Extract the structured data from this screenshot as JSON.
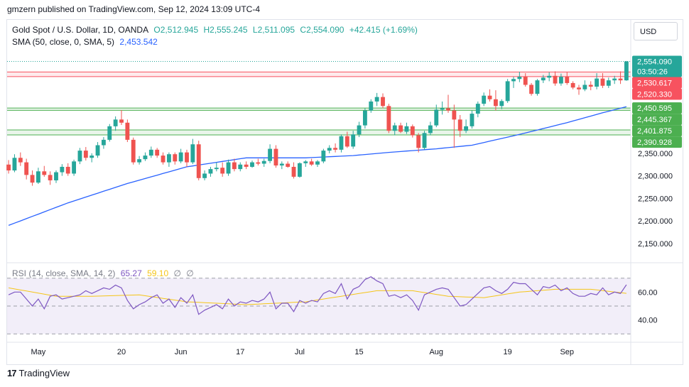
{
  "header": {
    "publisher_text": "gmzern published on TradingView.com, Sep 12, 2024 13:09 UTC-4"
  },
  "legend": {
    "title": "Gold Spot / U.S. Dollar, 1D, OANDA",
    "open": "O2,512.945",
    "high": "H2,555.245",
    "low": "L2,511.095",
    "close": "C2,554.090",
    "change": "+42.415 (+1.69%)",
    "sma_label": "SMA (50, close, 0, SMA, 5)",
    "sma_value": "2,453.542",
    "rsi_label": "RSI (14, close, SMA, 14, 2)",
    "rsi_value": "65.27",
    "rsi_sma_value": "59.10",
    "rsi_extra1": "∅",
    "rsi_extra2": "∅"
  },
  "toolbar": {
    "currency": "USD"
  },
  "footer": {
    "brand": "TradingView",
    "logo_glyph": "17"
  },
  "colors": {
    "up": "#26a69a",
    "down": "#ef5350",
    "sma": "#2962ff",
    "rsi": "#7e57c2",
    "rsi_sma": "#f5c518",
    "zone_red": "#f7525f",
    "zone_green": "#4caf50"
  },
  "chart_data": {
    "type": "candlestick",
    "symbol": "XAUUSD",
    "price_axis_ticks": [
      2150,
      2200,
      2250,
      2300,
      2350
    ],
    "price_axis_tick_labels": [
      "2,150.000",
      "2,200.000",
      "2,250.000",
      "2,300.000",
      "2,350.000"
    ],
    "ylim": [
      2115,
      2580
    ],
    "x_tick_labels": [
      {
        "label": "May",
        "index": 5
      },
      {
        "label": "20",
        "index": 19
      },
      {
        "label": "Jun",
        "index": 29
      },
      {
        "label": "17",
        "index": 39
      },
      {
        "label": "Jul",
        "index": 49
      },
      {
        "label": "15",
        "index": 59
      },
      {
        "label": "Aug",
        "index": 72
      },
      {
        "label": "19",
        "index": 84
      },
      {
        "label": "Sep",
        "index": 94
      }
    ],
    "price_labels": [
      {
        "value": 2554.09,
        "text": "2,554.090",
        "sub": "03:50:26",
        "color": "#26a69a"
      },
      {
        "value": 2530.617,
        "text": "2,530.617",
        "color": "#f7525f"
      },
      {
        "value": 2520.33,
        "text": "2,520.330",
        "color": "#f7525f"
      },
      {
        "value": 2450.595,
        "text": "2,450.595",
        "color": "#4caf50"
      },
      {
        "value": 2445.367,
        "text": "2,445.367",
        "color": "#4caf50"
      },
      {
        "value": 2401.875,
        "text": "2,401.875",
        "color": "#4caf50"
      },
      {
        "value": 2390.928,
        "text": "2,390.928",
        "color": "#4caf50"
      }
    ],
    "zones": [
      {
        "low": 2520.33,
        "high": 2530.617,
        "color": "red"
      },
      {
        "low": 2445.367,
        "high": 2450.595,
        "color": "green"
      },
      {
        "low": 2390.928,
        "high": 2401.875,
        "color": "green"
      }
    ],
    "candles": [
      [
        2325,
        2335,
        2305,
        2312
      ],
      [
        2312,
        2348,
        2308,
        2340
      ],
      [
        2340,
        2352,
        2322,
        2330
      ],
      [
        2330,
        2338,
        2292,
        2302
      ],
      [
        2302,
        2312,
        2278,
        2285
      ],
      [
        2285,
        2318,
        2282,
        2310
      ],
      [
        2310,
        2322,
        2298,
        2302
      ],
      [
        2302,
        2310,
        2280,
        2290
      ],
      [
        2290,
        2312,
        2284,
        2308
      ],
      [
        2308,
        2326,
        2300,
        2320
      ],
      [
        2320,
        2328,
        2300,
        2305
      ],
      [
        2305,
        2336,
        2300,
        2332
      ],
      [
        2332,
        2362,
        2326,
        2356
      ],
      [
        2356,
        2364,
        2334,
        2340
      ],
      [
        2340,
        2350,
        2330,
        2345
      ],
      [
        2345,
        2375,
        2340,
        2368
      ],
      [
        2368,
        2386,
        2360,
        2380
      ],
      [
        2380,
        2415,
        2376,
        2410
      ],
      [
        2410,
        2432,
        2400,
        2425
      ],
      [
        2425,
        2446,
        2413,
        2418
      ],
      [
        2418,
        2425,
        2375,
        2380
      ],
      [
        2380,
        2385,
        2325,
        2330
      ],
      [
        2330,
        2344,
        2325,
        2337
      ],
      [
        2337,
        2352,
        2333,
        2345
      ],
      [
        2345,
        2365,
        2340,
        2358
      ],
      [
        2358,
        2362,
        2340,
        2345
      ],
      [
        2345,
        2352,
        2325,
        2330
      ],
      [
        2330,
        2352,
        2320,
        2348
      ],
      [
        2348,
        2352,
        2325,
        2332
      ],
      [
        2332,
        2360,
        2328,
        2352
      ],
      [
        2352,
        2358,
        2320,
        2330
      ],
      [
        2330,
        2382,
        2326,
        2370
      ],
      [
        2370,
        2378,
        2290,
        2295
      ],
      [
        2295,
        2312,
        2290,
        2305
      ],
      [
        2305,
        2320,
        2298,
        2315
      ],
      [
        2315,
        2330,
        2310,
        2318
      ],
      [
        2318,
        2330,
        2298,
        2305
      ],
      [
        2305,
        2336,
        2300,
        2330
      ],
      [
        2330,
        2338,
        2310,
        2315
      ],
      [
        2315,
        2330,
        2310,
        2325
      ],
      [
        2325,
        2332,
        2315,
        2320
      ],
      [
        2320,
        2334,
        2318,
        2330
      ],
      [
        2330,
        2338,
        2323,
        2327
      ],
      [
        2327,
        2338,
        2320,
        2333
      ],
      [
        2333,
        2370,
        2328,
        2360
      ],
      [
        2360,
        2368,
        2318,
        2323
      ],
      [
        2323,
        2332,
        2315,
        2327
      ],
      [
        2327,
        2332,
        2318,
        2320
      ],
      [
        2320,
        2330,
        2294,
        2298
      ],
      [
        2298,
        2330,
        2296,
        2328
      ],
      [
        2328,
        2335,
        2320,
        2332
      ],
      [
        2332,
        2338,
        2322,
        2325
      ],
      [
        2325,
        2335,
        2320,
        2332
      ],
      [
        2332,
        2360,
        2328,
        2356
      ],
      [
        2356,
        2368,
        2350,
        2362
      ],
      [
        2362,
        2372,
        2352,
        2358
      ],
      [
        2358,
        2392,
        2352,
        2388
      ],
      [
        2388,
        2398,
        2362,
        2365
      ],
      [
        2365,
        2400,
        2360,
        2392
      ],
      [
        2392,
        2420,
        2386,
        2412
      ],
      [
        2412,
        2450,
        2405,
        2445
      ],
      [
        2445,
        2470,
        2440,
        2465
      ],
      [
        2465,
        2484,
        2455,
        2475
      ],
      [
        2475,
        2483,
        2450,
        2455
      ],
      [
        2455,
        2460,
        2395,
        2400
      ],
      [
        2400,
        2418,
        2390,
        2412
      ],
      [
        2412,
        2418,
        2395,
        2398
      ],
      [
        2398,
        2418,
        2393,
        2410
      ],
      [
        2410,
        2414,
        2385,
        2390
      ],
      [
        2390,
        2395,
        2352,
        2362
      ],
      [
        2362,
        2400,
        2358,
        2395
      ],
      [
        2395,
        2420,
        2390,
        2412
      ],
      [
        2412,
        2458,
        2408,
        2447
      ],
      [
        2447,
        2465,
        2436,
        2450
      ],
      [
        2450,
        2480,
        2440,
        2445
      ],
      [
        2445,
        2458,
        2362,
        2425
      ],
      [
        2425,
        2435,
        2386,
        2400
      ],
      [
        2400,
        2425,
        2395,
        2410
      ],
      [
        2410,
        2445,
        2405,
        2438
      ],
      [
        2438,
        2465,
        2430,
        2460
      ],
      [
        2460,
        2485,
        2455,
        2478
      ],
      [
        2478,
        2492,
        2465,
        2470
      ],
      [
        2470,
        2490,
        2445,
        2455
      ],
      [
        2455,
        2470,
        2448,
        2466
      ],
      [
        2466,
        2515,
        2462,
        2510
      ],
      [
        2510,
        2520,
        2495,
        2515
      ],
      [
        2515,
        2531,
        2508,
        2520
      ],
      [
        2520,
        2528,
        2498,
        2502
      ],
      [
        2502,
        2506,
        2478,
        2482
      ],
      [
        2482,
        2515,
        2478,
        2512
      ],
      [
        2512,
        2524,
        2506,
        2518
      ],
      [
        2518,
        2530,
        2510,
        2522
      ],
      [
        2522,
        2532,
        2500,
        2505
      ],
      [
        2505,
        2527,
        2500,
        2520
      ],
      [
        2520,
        2530,
        2502,
        2506
      ],
      [
        2506,
        2510,
        2492,
        2496
      ],
      [
        2496,
        2502,
        2480,
        2492
      ],
      [
        2492,
        2512,
        2488,
        2502
      ],
      [
        2502,
        2510,
        2490,
        2498
      ],
      [
        2498,
        2528,
        2492,
        2516
      ],
      [
        2516,
        2528,
        2495,
        2500
      ],
      [
        2500,
        2518,
        2495,
        2512
      ],
      [
        2512,
        2522,
        2504,
        2516
      ],
      [
        2516,
        2532,
        2504,
        2512
      ],
      [
        2512,
        2555,
        2511,
        2554
      ]
    ],
    "sma50_anchor": [
      [
        0,
        2190
      ],
      [
        10,
        2240
      ],
      [
        20,
        2283
      ],
      [
        30,
        2320
      ],
      [
        40,
        2340
      ],
      [
        50,
        2340
      ],
      [
        58,
        2345
      ],
      [
        64,
        2352
      ],
      [
        72,
        2360
      ],
      [
        78,
        2368
      ],
      [
        86,
        2392
      ],
      [
        94,
        2418
      ],
      [
        100,
        2440
      ],
      [
        104,
        2453.542
      ]
    ],
    "rsi": {
      "ylim": [
        25,
        78
      ],
      "levels": [
        70,
        50,
        30
      ],
      "axis_ticks": [
        40,
        60
      ],
      "axis_tick_labels": [
        "40.00",
        "60.00"
      ],
      "values": [
        58,
        60,
        60,
        55,
        50,
        55,
        48,
        57,
        58,
        55,
        56,
        57,
        58,
        61,
        59,
        61,
        63,
        62,
        65,
        63,
        54,
        48,
        51,
        53,
        56,
        58,
        52,
        55,
        49,
        56,
        52,
        58,
        44,
        47,
        49,
        51,
        48,
        55,
        50,
        53,
        52,
        54,
        53,
        55,
        60,
        48,
        52,
        52,
        46,
        54,
        52,
        54,
        53,
        59,
        61,
        59,
        66,
        55,
        62,
        64,
        69,
        71,
        68,
        66,
        57,
        58,
        56,
        58,
        54,
        47,
        58,
        60,
        62,
        63,
        62,
        56,
        50,
        51,
        55,
        59,
        63,
        64,
        61,
        59,
        62,
        67,
        66,
        66,
        62,
        58,
        64,
        63,
        65,
        61,
        63,
        59,
        57,
        57,
        59,
        58,
        63,
        58,
        60,
        59,
        65.27
      ],
      "sma_anchor": [
        [
          0,
          63
        ],
        [
          8,
          57
        ],
        [
          14,
          57
        ],
        [
          22,
          58
        ],
        [
          30,
          53
        ],
        [
          40,
          51
        ],
        [
          50,
          53
        ],
        [
          56,
          57
        ],
        [
          62,
          61
        ],
        [
          68,
          61
        ],
        [
          74,
          57
        ],
        [
          80,
          56
        ],
        [
          86,
          60
        ],
        [
          92,
          62
        ],
        [
          98,
          62
        ],
        [
          104,
          59.1
        ]
      ]
    }
  }
}
